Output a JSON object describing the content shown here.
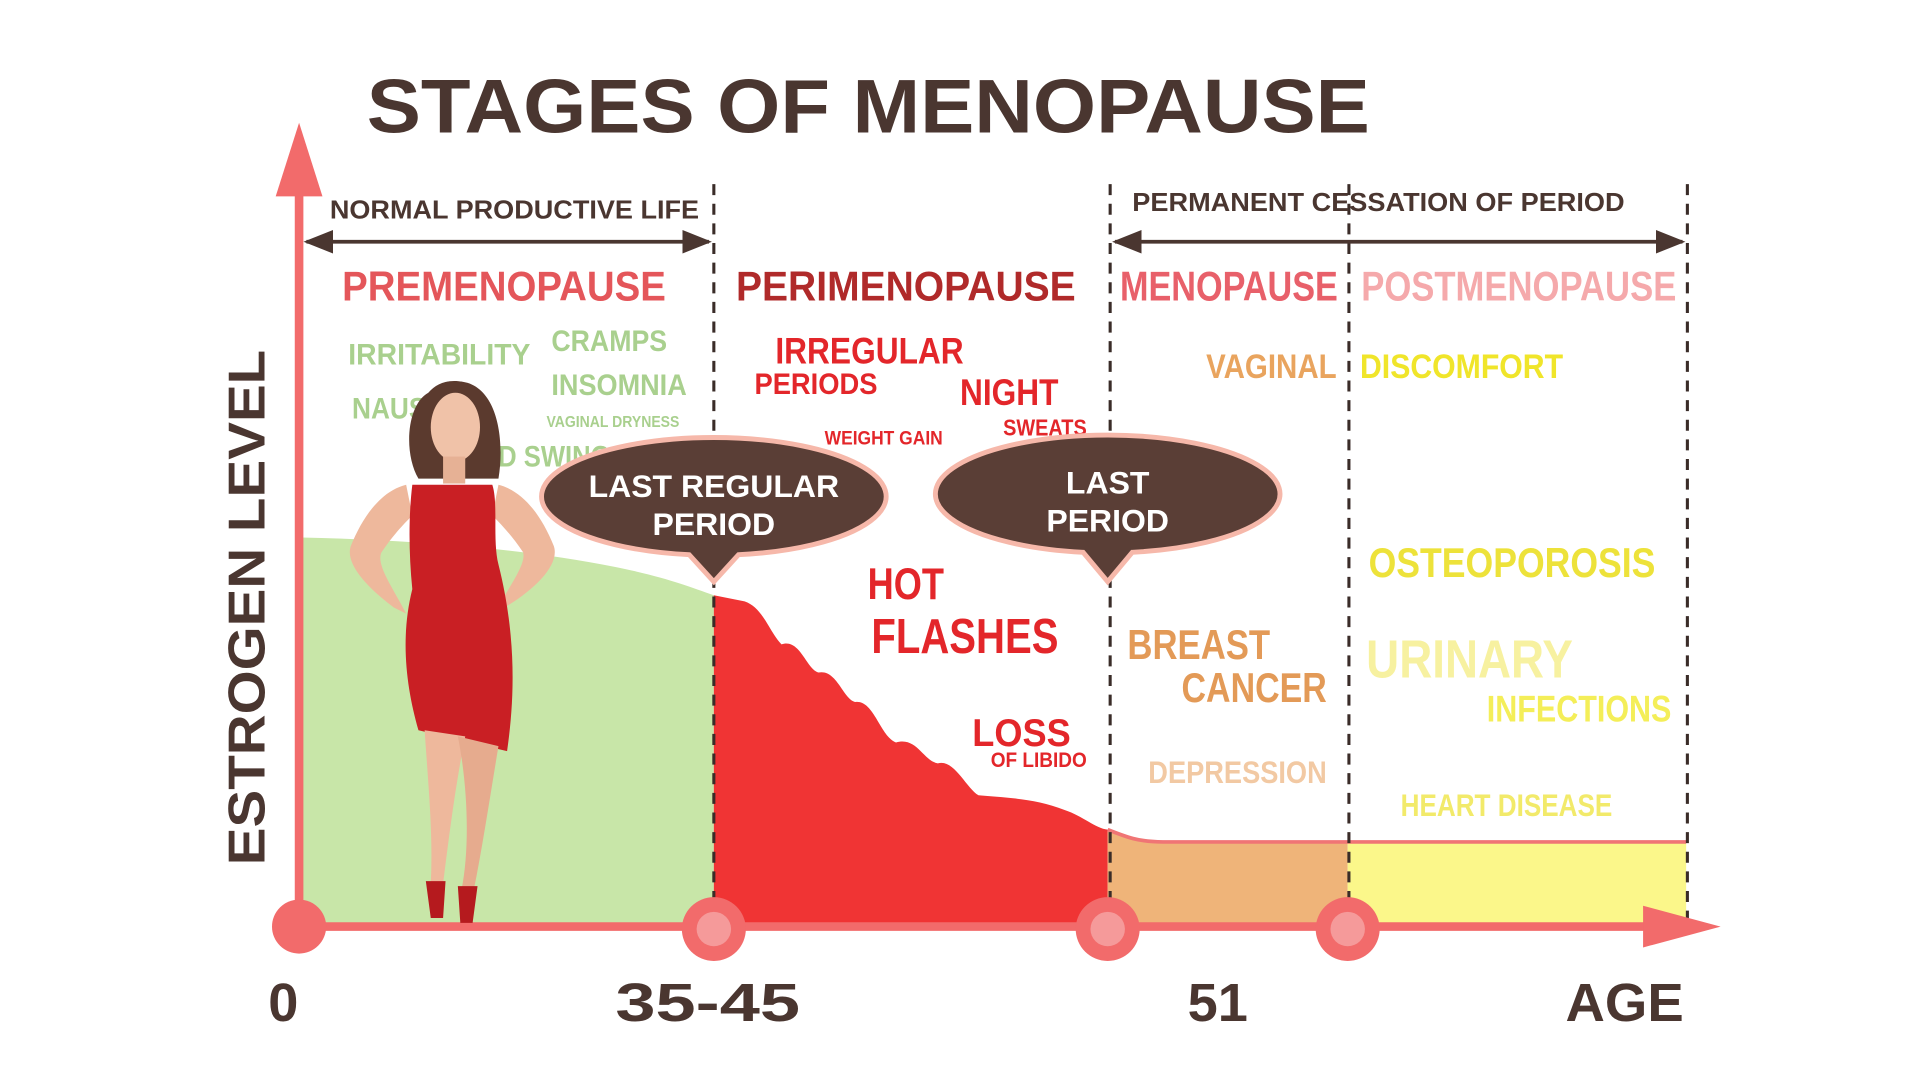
{
  "title": "STAGES OF MENOPAUSE",
  "y_axis_label": "ESTROGEN LEVEL",
  "x_axis_label": "AGE",
  "age_labels": [
    "0",
    "35-45",
    "51"
  ],
  "spans": [
    "NORMAL PRODUCTIVE LIFE",
    "PERMANENT CESSATION OF PERIOD"
  ],
  "stages": [
    {
      "name": "PREMENOPAUSE",
      "symptoms": [
        "IRRITABILITY",
        "CRAMPS",
        "INSOMNIA",
        "NAUSEA",
        "VAGINAL DRYNESS",
        "MOOD SWINGS"
      ]
    },
    {
      "name": "PERIMENOPAUSE",
      "symptoms": [
        "IRREGULAR",
        "PERIODS",
        "NIGHT",
        "SWEATS",
        "WEIGHT GAIN",
        "HOT",
        "FLASHES",
        "LOSS",
        "OF LIBIDO"
      ]
    },
    {
      "name": "MENOPAUSE",
      "symptoms": [
        "VAGINAL",
        "BREAST",
        "CANCER",
        "DEPRESSION"
      ]
    },
    {
      "name": "POSTMENOPAUSE",
      "symptoms": [
        "DISCOMFORT",
        "OSTEOPOROSIS",
        "URINARY",
        "INFECTIONS",
        "HEART DISEASE"
      ]
    }
  ],
  "callouts": [
    [
      "LAST REGULAR",
      "PERIOD"
    ],
    [
      "LAST",
      "PERIOD"
    ]
  ]
}
